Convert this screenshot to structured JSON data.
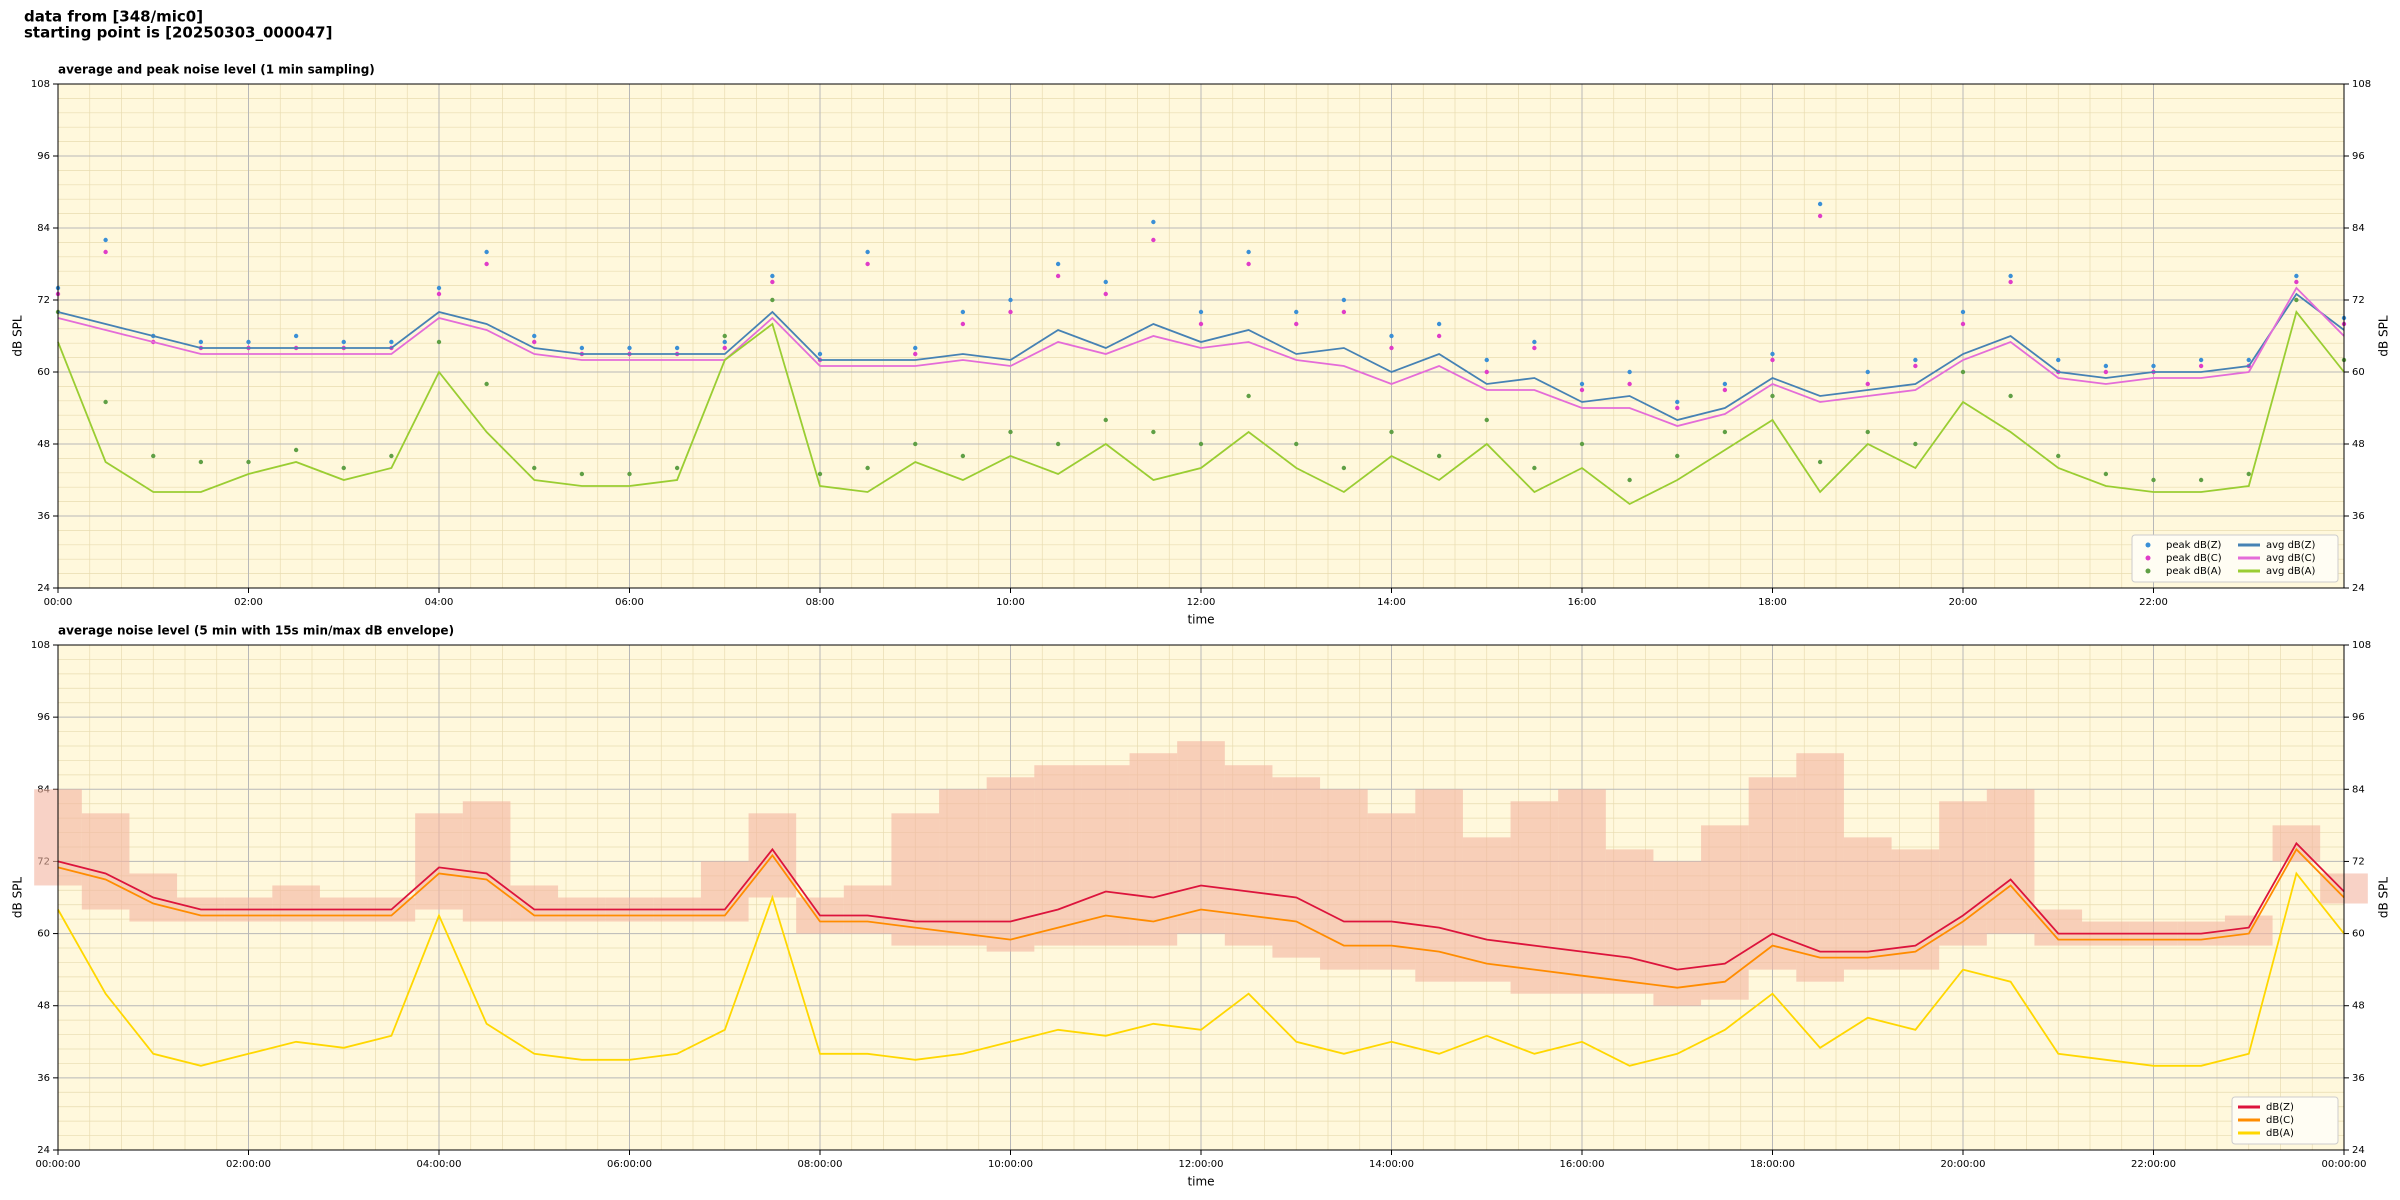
{
  "header": {
    "lines": [
      "data from [348/mic0]",
      "starting point is [20250303_000047]"
    ]
  },
  "chart_data": [
    {
      "type": "line",
      "title": "average and peak noise level (1 min sampling)",
      "x_label": "time",
      "y_label": "dB SPL",
      "xlim": [
        0,
        24
      ],
      "ylim": [
        24,
        108
      ],
      "yticks": [
        24,
        36,
        48,
        60,
        72,
        84,
        96,
        108
      ],
      "grid": true,
      "legend": "lower right",
      "legend_columns": 2,
      "background": "#fff8dc",
      "xticks": [
        {
          "value": 0,
          "label": "00:00"
        },
        {
          "value": 2,
          "label": "02:00"
        },
        {
          "value": 4,
          "label": "04:00"
        },
        {
          "value": 6,
          "label": "06:00"
        },
        {
          "value": 8,
          "label": "08:00"
        },
        {
          "value": 10,
          "label": "10:00"
        },
        {
          "value": 12,
          "label": "12:00"
        },
        {
          "value": 14,
          "label": "14:00"
        },
        {
          "value": 16,
          "label": "16:00"
        },
        {
          "value": 18,
          "label": "18:00"
        },
        {
          "value": 20,
          "label": "20:00"
        },
        {
          "value": 22,
          "label": "22:00"
        }
      ],
      "x": [
        0,
        0.5,
        1,
        1.5,
        2,
        2.5,
        3,
        3.5,
        4,
        4.5,
        5,
        5.5,
        6,
        6.5,
        7,
        7.5,
        8,
        8.5,
        9,
        9.5,
        10,
        10.5,
        11,
        11.5,
        12,
        12.5,
        13,
        13.5,
        14,
        14.5,
        15,
        15.5,
        16,
        16.5,
        17,
        17.5,
        18,
        18.5,
        19,
        19.5,
        20,
        20.5,
        21,
        21.5,
        22,
        22.5,
        23,
        23.5,
        24
      ],
      "series": [
        {
          "name": "peak dB(Z)",
          "style": "dots",
          "color": "#3a8fd6",
          "values": [
            74,
            82,
            66,
            65,
            65,
            66,
            65,
            65,
            74,
            80,
            66,
            64,
            64,
            64,
            65,
            76,
            63,
            80,
            64,
            70,
            72,
            78,
            75,
            85,
            70,
            80,
            70,
            72,
            66,
            68,
            62,
            65,
            58,
            60,
            55,
            58,
            63,
            88,
            60,
            62,
            70,
            76,
            62,
            61,
            61,
            62,
            62,
            76,
            69
          ]
        },
        {
          "name": "peak dB(C)",
          "style": "dots",
          "color": "#e03cc8",
          "values": [
            73,
            80,
            65,
            64,
            64,
            64,
            64,
            64,
            73,
            78,
            65,
            63,
            63,
            63,
            64,
            75,
            62,
            78,
            63,
            68,
            70,
            76,
            73,
            82,
            68,
            78,
            68,
            70,
            64,
            66,
            60,
            64,
            57,
            58,
            54,
            57,
            62,
            86,
            58,
            61,
            68,
            75,
            60,
            60,
            60,
            61,
            61,
            75,
            68
          ]
        },
        {
          "name": "peak dB(A)",
          "style": "dots",
          "color": "#5f9f45",
          "values": [
            70,
            55,
            46,
            45,
            45,
            47,
            44,
            46,
            65,
            58,
            44,
            43,
            43,
            44,
            66,
            72,
            43,
            44,
            48,
            46,
            50,
            48,
            52,
            50,
            48,
            56,
            48,
            44,
            50,
            46,
            52,
            44,
            48,
            42,
            46,
            50,
            56,
            45,
            50,
            48,
            60,
            56,
            46,
            43,
            42,
            42,
            43,
            72,
            62
          ]
        },
        {
          "name": "avg dB(Z)",
          "style": "line",
          "color": "#4682b4",
          "values": [
            70,
            68,
            66,
            64,
            64,
            64,
            64,
            64,
            70,
            68,
            64,
            63,
            63,
            63,
            63,
            70,
            62,
            62,
            62,
            63,
            62,
            67,
            64,
            68,
            65,
            67,
            63,
            64,
            60,
            63,
            58,
            59,
            55,
            56,
            52,
            54,
            59,
            56,
            57,
            58,
            63,
            66,
            60,
            59,
            60,
            60,
            61,
            73,
            67
          ]
        },
        {
          "name": "avg dB(C)",
          "style": "line",
          "color": "#e46cd8",
          "values": [
            69,
            67,
            65,
            63,
            63,
            63,
            63,
            63,
            69,
            67,
            63,
            62,
            62,
            62,
            62,
            69,
            61,
            61,
            61,
            62,
            61,
            65,
            63,
            66,
            64,
            65,
            62,
            61,
            58,
            61,
            57,
            57,
            54,
            54,
            51,
            53,
            58,
            55,
            56,
            57,
            62,
            65,
            59,
            58,
            59,
            59,
            60,
            74,
            66
          ]
        },
        {
          "name": "avg dB(A)",
          "style": "line",
          "color": "#9acd32",
          "values": [
            65,
            45,
            40,
            40,
            43,
            45,
            42,
            44,
            60,
            50,
            42,
            41,
            41,
            42,
            62,
            68,
            41,
            40,
            45,
            42,
            46,
            43,
            48,
            42,
            44,
            50,
            44,
            40,
            46,
            42,
            48,
            40,
            44,
            38,
            42,
            47,
            52,
            40,
            48,
            44,
            55,
            50,
            44,
            41,
            40,
            40,
            41,
            70,
            60
          ]
        }
      ]
    },
    {
      "type": "line",
      "title": "average noise level (5 min with 15s min/max dB envelope)",
      "x_label": "time",
      "y_label": "dB SPL",
      "xlim": [
        0,
        24
      ],
      "ylim": [
        24,
        108
      ],
      "yticks": [
        24,
        36,
        48,
        60,
        72,
        84,
        96,
        108
      ],
      "grid": true,
      "legend": "lower right",
      "legend_columns": 1,
      "background": "#fff8dc",
      "xticks": [
        {
          "value": 0,
          "label": "00:00:00"
        },
        {
          "value": 2,
          "label": "02:00:00"
        },
        {
          "value": 4,
          "label": "04:00:00"
        },
        {
          "value": 6,
          "label": "06:00:00"
        },
        {
          "value": 8,
          "label": "08:00:00"
        },
        {
          "value": 10,
          "label": "10:00:00"
        },
        {
          "value": 12,
          "label": "12:00:00"
        },
        {
          "value": 14,
          "label": "14:00:00"
        },
        {
          "value": 16,
          "label": "16:00:00"
        },
        {
          "value": 18,
          "label": "18:00:00"
        },
        {
          "value": 20,
          "label": "20:00:00"
        },
        {
          "value": 22,
          "label": "22:00:00"
        },
        {
          "value": 24,
          "label": "00:00:00"
        }
      ],
      "x": [
        0,
        0.5,
        1,
        1.5,
        2,
        2.5,
        3,
        3.5,
        4,
        4.5,
        5,
        5.5,
        6,
        6.5,
        7,
        7.5,
        8,
        8.5,
        9,
        9.5,
        10,
        10.5,
        11,
        11.5,
        12,
        12.5,
        13,
        13.5,
        14,
        14.5,
        15,
        15.5,
        16,
        16.5,
        17,
        17.5,
        18,
        18.5,
        19,
        19.5,
        20,
        20.5,
        21,
        21.5,
        22,
        22.5,
        23,
        23.5,
        24
      ],
      "series": [
        {
          "name": "dB(Z)",
          "style": "line",
          "color": "#dc143c",
          "envelope_color": "#f4b4a0",
          "values": [
            72,
            70,
            66,
            64,
            64,
            64,
            64,
            64,
            71,
            70,
            64,
            64,
            64,
            64,
            64,
            74,
            63,
            63,
            62,
            62,
            62,
            64,
            67,
            66,
            68,
            67,
            66,
            62,
            62,
            61,
            59,
            58,
            57,
            56,
            54,
            55,
            60,
            57,
            57,
            58,
            63,
            69,
            60,
            60,
            60,
            60,
            61,
            75,
            67
          ],
          "min": [
            68,
            64,
            62,
            62,
            62,
            62,
            62,
            62,
            64,
            62,
            62,
            62,
            62,
            62,
            62,
            66,
            60,
            60,
            58,
            58,
            57,
            58,
            58,
            58,
            60,
            58,
            56,
            54,
            54,
            52,
            52,
            50,
            50,
            50,
            48,
            49,
            54,
            52,
            54,
            54,
            58,
            60,
            58,
            58,
            58,
            58,
            58,
            72,
            65
          ],
          "max": [
            84,
            80,
            70,
            66,
            66,
            68,
            66,
            66,
            80,
            82,
            68,
            66,
            66,
            66,
            72,
            80,
            66,
            68,
            80,
            84,
            86,
            88,
            88,
            90,
            92,
            88,
            86,
            84,
            80,
            84,
            76,
            82,
            84,
            74,
            72,
            78,
            86,
            90,
            76,
            74,
            82,
            84,
            64,
            62,
            62,
            62,
            63,
            78,
            70
          ]
        },
        {
          "name": "dB(C)",
          "style": "line",
          "color": "#ff8c00",
          "values": [
            71,
            69,
            65,
            63,
            63,
            63,
            63,
            63,
            70,
            69,
            63,
            63,
            63,
            63,
            63,
            73,
            62,
            62,
            61,
            60,
            59,
            61,
            63,
            62,
            64,
            63,
            62,
            58,
            58,
            57,
            55,
            54,
            53,
            52,
            51,
            52,
            58,
            56,
            56,
            57,
            62,
            68,
            59,
            59,
            59,
            59,
            60,
            74,
            66
          ]
        },
        {
          "name": "dB(A)",
          "style": "line",
          "color": "#ffd700",
          "values": [
            64,
            50,
            40,
            38,
            40,
            42,
            41,
            43,
            63,
            45,
            40,
            39,
            39,
            40,
            44,
            66,
            40,
            40,
            39,
            40,
            42,
            44,
            43,
            45,
            44,
            50,
            42,
            40,
            42,
            40,
            43,
            40,
            42,
            38,
            40,
            44,
            50,
            41,
            46,
            44,
            54,
            52,
            40,
            39,
            38,
            38,
            40,
            70,
            60
          ]
        }
      ]
    }
  ]
}
